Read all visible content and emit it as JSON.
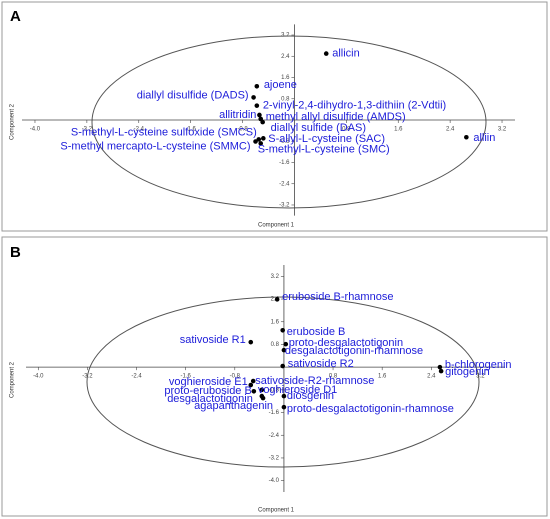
{
  "chart_data": [
    {
      "type": "scatter",
      "title": "A",
      "x_label": "Component 1",
      "y_label": "Component 2",
      "xlim": [
        -4.2,
        3.4
      ],
      "ylim": [
        -3.6,
        3.6
      ],
      "xticks": [
        {
          "value": -4.0,
          "label": "-4.0"
        },
        -3.2,
        -2.4,
        -1.6,
        -0.8,
        0.8,
        1.6,
        2.4,
        3.2
      ],
      "yticks": [
        -3.2,
        -2.4,
        -1.6,
        -0.8,
        0.8,
        1.6,
        2.4,
        3.2
      ],
      "color": "#000000",
      "label_color": "#1c1cd9",
      "labels": [
        "allicin",
        "ajoene",
        "diallyl disulfide (DADS)",
        "2-vinyl-2,4-dihydro-1,3-dithiin  (2-Vdtii)",
        "methyl allyl disulfide (AMDS)",
        "diallyl sulfide (DAS)",
        "allitridin",
        "S-methyl-L-cysteine sulfoxide (SMCS)",
        "S-allyl-L-cysteine (SAC)",
        "S-methyl mercapto-L-cysteine (SMMC)",
        "S-methyl-L-cysteine (SMC)",
        "alliin"
      ],
      "x": [
        0.49,
        -0.58,
        -0.63,
        -0.58,
        -0.52,
        -0.49,
        -0.54,
        -0.55,
        -0.48,
        -0.6,
        -0.52,
        2.65
      ],
      "values": [
        2.5,
        1.27,
        0.85,
        0.54,
        0.04,
        -0.08,
        0.19,
        -0.73,
        -0.69,
        -0.81,
        -0.88,
        -0.65
      ]
    },
    {
      "type": "scatter",
      "title": "B",
      "x_label": "Component 1",
      "y_label": "Component 2",
      "xlim": [
        -4.2,
        3.6
      ],
      "ylim": [
        -4.4,
        3.6
      ],
      "xticks": [
        {
          "value": -4.0,
          "label": "-4.0"
        },
        -3.2,
        -2.4,
        -1.6,
        -0.8,
        0.8,
        1.6,
        2.4,
        3.2
      ],
      "yticks": [
        {
          "value": -4.0,
          "label": "-4.0"
        },
        -3.2,
        -2.4,
        -1.6,
        -0.8,
        0.8,
        1.6,
        2.4,
        3.2
      ],
      "color": "#000000",
      "label_color": "#1c1cd9",
      "labels": [
        "eruboside B-rhamnose",
        "sativoside R1",
        "eruboside B",
        "proto-desgalactotigonin",
        "desgalactotigonin-rhamnose",
        "sativoside R2",
        "b-chlorogenin",
        "gitogenin",
        "voghieroside E1",
        "sativoside-R2-rhamnose",
        "proto-eruboside B",
        "voghieroside D1",
        "desgalactotigonin",
        "diosgenin",
        "agapanthagenin",
        "proto-desgalactotigonin-rhamnose"
      ],
      "x": [
        -0.11,
        -0.54,
        -0.02,
        0.03,
        0.0,
        -0.02,
        2.54,
        2.56,
        -0.54,
        -0.5,
        -0.49,
        -0.36,
        -0.36,
        0.0,
        -0.34,
        0.0
      ],
      "values": [
        2.39,
        0.88,
        1.3,
        0.81,
        0.6,
        0.04,
        0.0,
        -0.14,
        -0.63,
        -0.49,
        -0.85,
        -0.8,
        -1.02,
        -1.02,
        -1.09,
        -1.41
      ]
    }
  ]
}
